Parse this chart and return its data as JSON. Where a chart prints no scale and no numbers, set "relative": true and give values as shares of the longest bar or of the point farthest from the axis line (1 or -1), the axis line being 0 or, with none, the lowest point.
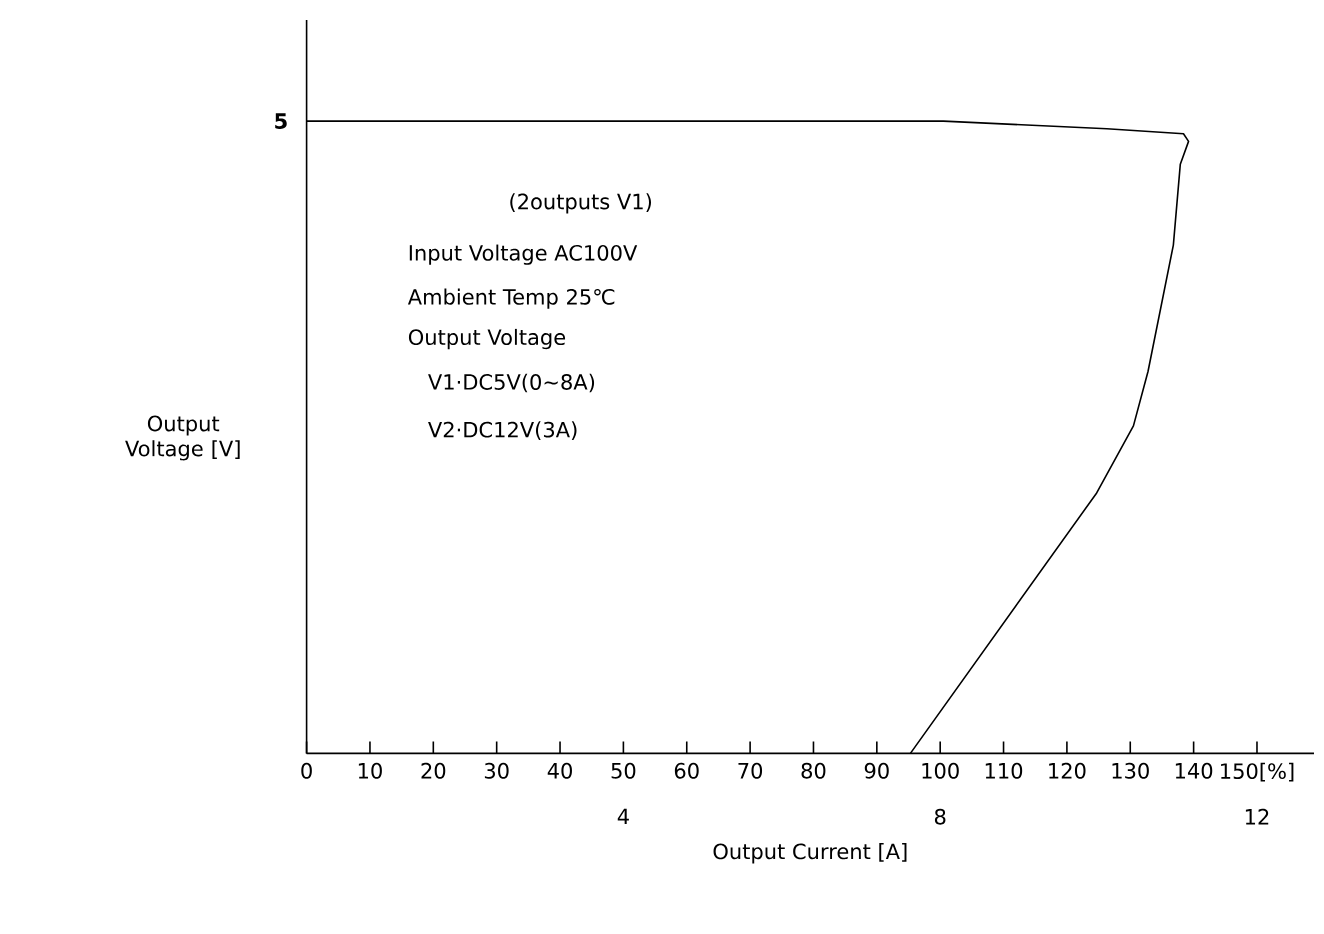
{
  "chart_data": {
    "type": "line",
    "relative": true,
    "ylabel": "Output Voltage [V]",
    "x2label": "Output Current [A]",
    "xlim": [
      0,
      159
    ],
    "xticks": [
      0,
      10,
      20,
      30,
      40,
      50,
      60,
      70,
      80,
      90,
      100,
      110,
      120,
      130,
      140,
      {
        "value": 150,
        "label": "150[%]"
      }
    ],
    "x2lim": [
      0,
      12.72
    ],
    "x2ticks": [
      4,
      8,
      12
    ],
    "line_style": "solid",
    "series": [
      {
        "color": "#000000",
        "x": [
          0,
          100.5,
          126.3,
          138.4,
          139.2,
          137.9,
          136.8,
          132.8,
          130.5,
          124.7,
          95.3
        ],
        "values": [
          1,
          1,
          0.988,
          0.98,
          0.968,
          0.932,
          0.804,
          0.604,
          0.518,
          0.412,
          0
        ]
      }
    ],
    "annotations": [
      {
        "text": "5",
        "x": 0,
        "y": 1
      },
      "(2outputs V1)",
      "Input Voltage AC100V",
      "Ambient Temp   25℃",
      "Output Voltage",
      "V1·DC5V(0~8A)",
      "V2·DC12V(3A)"
    ]
  }
}
